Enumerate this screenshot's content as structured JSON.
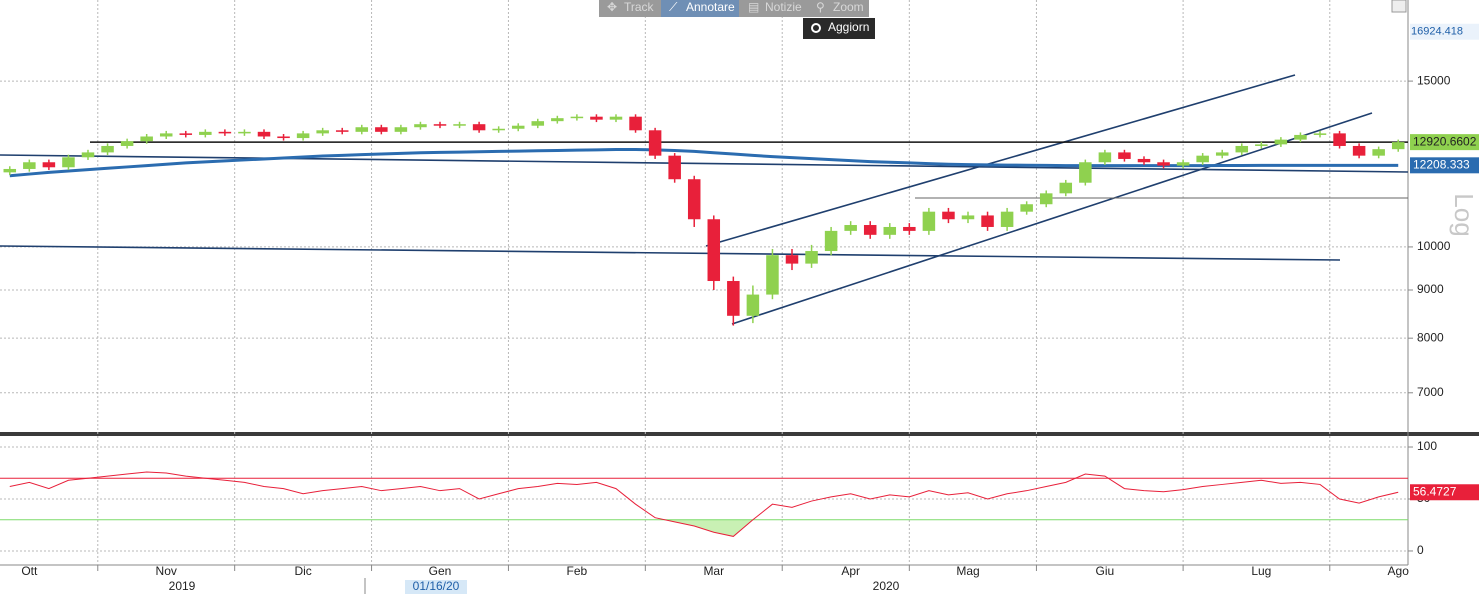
{
  "chart_data": [
    {
      "type": "candlestick",
      "log_scale": true,
      "grid": true,
      "y_label": "Log",
      "up_color": "#8fd14f",
      "down_color": "#e8203a",
      "ma_color": "#2b6cb0",
      "last_color": "#8fd14f",
      "high_marker": 16924.418,
      "year_labels": [
        "2019",
        "2020"
      ],
      "cursor_label": "01/16/20",
      "categories": [
        null,
        "Ott",
        null,
        null,
        null,
        null,
        null,
        null,
        "Nov",
        null,
        null,
        null,
        null,
        null,
        null,
        "Dic",
        null,
        null,
        null,
        null,
        null,
        null,
        "Gen",
        null,
        null,
        null,
        null,
        null,
        null,
        "Feb",
        null,
        null,
        null,
        null,
        null,
        null,
        "Mar",
        null,
        null,
        null,
        null,
        null,
        null,
        "Apr",
        null,
        null,
        null,
        null,
        null,
        "Mag",
        null,
        null,
        null,
        null,
        null,
        null,
        "Giu",
        null,
        null,
        null,
        null,
        null,
        null,
        null,
        "Lug",
        null,
        null,
        null,
        null,
        null,
        null,
        "Ago"
      ],
      "open": [
        12000,
        12100,
        12300,
        12150,
        12450,
        12600,
        12800,
        12950,
        13100,
        13200,
        13150,
        13250,
        13200,
        13250,
        13100,
        13050,
        13200,
        13300,
        13250,
        13400,
        13250,
        13400,
        13500,
        13450,
        13500,
        13300,
        13350,
        13450,
        13600,
        13700,
        13750,
        13650,
        13750,
        13300,
        12500,
        11800,
        10700,
        9200,
        8450,
        8900,
        9800,
        9600,
        9900,
        10400,
        10550,
        10300,
        10500,
        10400,
        10900,
        10700,
        10800,
        10500,
        10900,
        11100,
        11400,
        11700,
        12300,
        12600,
        12400,
        12300,
        12200,
        12300,
        12500,
        12600,
        12800,
        12850,
        13000,
        13150,
        13200,
        12800,
        12500,
        12700
      ],
      "high": [
        12180,
        12380,
        12380,
        12530,
        12680,
        12880,
        13030,
        13180,
        13280,
        13280,
        13330,
        13330,
        13330,
        13330,
        13180,
        13280,
        13380,
        13380,
        13480,
        13480,
        13480,
        13580,
        13580,
        13580,
        13580,
        13430,
        13530,
        13680,
        13780,
        13830,
        13830,
        13830,
        13830,
        13380,
        12580,
        11900,
        10800,
        9300,
        9100,
        9950,
        9950,
        10050,
        10500,
        10650,
        10650,
        10600,
        10600,
        11000,
        11000,
        10900,
        10900,
        11000,
        11180,
        11480,
        11780,
        12380,
        12680,
        12680,
        12480,
        12380,
        12380,
        12580,
        12680,
        12880,
        12930,
        13080,
        13230,
        13280,
        13280,
        12880,
        12780,
        13000
      ],
      "low": [
        11920,
        12020,
        12070,
        12070,
        12370,
        12520,
        12720,
        12870,
        13020,
        13070,
        13070,
        13120,
        13120,
        13020,
        12970,
        12970,
        13120,
        13170,
        13170,
        13170,
        13170,
        13320,
        13370,
        13370,
        13220,
        13220,
        13270,
        13370,
        13520,
        13620,
        13570,
        13570,
        13220,
        12400,
        11700,
        10500,
        9000,
        8250,
        8300,
        8800,
        9450,
        9500,
        9800,
        10300,
        10200,
        10200,
        10300,
        10300,
        10600,
        10600,
        10400,
        10400,
        10820,
        11020,
        11320,
        11620,
        12220,
        12320,
        12220,
        12120,
        12120,
        12220,
        12420,
        12520,
        12720,
        12770,
        12920,
        13070,
        12720,
        12420,
        12420,
        12620
      ],
      "close": [
        12100,
        12300,
        12150,
        12450,
        12600,
        12800,
        12950,
        13100,
        13200,
        13150,
        13250,
        13200,
        13250,
        13100,
        13050,
        13200,
        13300,
        13250,
        13400,
        13250,
        13400,
        13500,
        13450,
        13500,
        13300,
        13350,
        13450,
        13600,
        13700,
        13750,
        13650,
        13750,
        13300,
        12500,
        11800,
        10700,
        9200,
        8450,
        8900,
        9800,
        9600,
        9900,
        10400,
        10550,
        10300,
        10500,
        10400,
        10900,
        10700,
        10800,
        10500,
        10900,
        11100,
        11400,
        11700,
        12300,
        12600,
        12400,
        12300,
        12200,
        12300,
        12500,
        12600,
        12800,
        12850,
        13000,
        13150,
        13200,
        12800,
        12500,
        12700,
        12920.6602
      ],
      "moving_average": [
        11900,
        11950,
        12000,
        12040,
        12080,
        12120,
        12160,
        12200,
        12240,
        12280,
        12310,
        12340,
        12370,
        12400,
        12430,
        12460,
        12490,
        12510,
        12530,
        12550,
        12570,
        12590,
        12600,
        12610,
        12620,
        12630,
        12640,
        12650,
        12660,
        12670,
        12680,
        12690,
        12690,
        12680,
        12660,
        12630,
        12590,
        12550,
        12510,
        12470,
        12440,
        12410,
        12380,
        12350,
        12320,
        12300,
        12280,
        12260,
        12240,
        12230,
        12220,
        12215,
        12210,
        12205,
        12200,
        12200,
        12200,
        12200,
        12200,
        12200,
        12200,
        12200,
        12202,
        12204,
        12206,
        12208,
        12208,
        12208,
        12208,
        12208,
        12208,
        12208.333
      ],
      "ylim": [
        6360,
        18290
      ],
      "yticks": [
        7000,
        8000,
        9000,
        10000,
        15000
      ]
    },
    {
      "type": "line",
      "color": "#e8203a",
      "grid": true,
      "upper_band": 70,
      "lower_band": 30,
      "upper_color": "#e8203a",
      "lower_color": "#7ddc6a",
      "fill_color": "#c9f0b4",
      "values": [
        62,
        66,
        60,
        68,
        70,
        72,
        74,
        76,
        75,
        72,
        70,
        68,
        66,
        62,
        60,
        55,
        58,
        60,
        62,
        58,
        60,
        62,
        58,
        60,
        50,
        55,
        60,
        62,
        65,
        64,
        66,
        60,
        45,
        32,
        28,
        24,
        18,
        14,
        30,
        45,
        42,
        48,
        52,
        55,
        50,
        54,
        52,
        58,
        54,
        56,
        50,
        55,
        58,
        62,
        66,
        74,
        72,
        60,
        58,
        57,
        59,
        62,
        64,
        66,
        68,
        65,
        66,
        64,
        50,
        46,
        52,
        56.4727
      ],
      "ylim": [
        -13.5,
        110.6
      ],
      "yticks": [
        0,
        50,
        100
      ]
    }
  ],
  "toolbar": {
    "track": "Track",
    "annotate": "Annotare",
    "news": "Notizie",
    "zoom": "Zoom",
    "refresh": "Aggiorn"
  }
}
